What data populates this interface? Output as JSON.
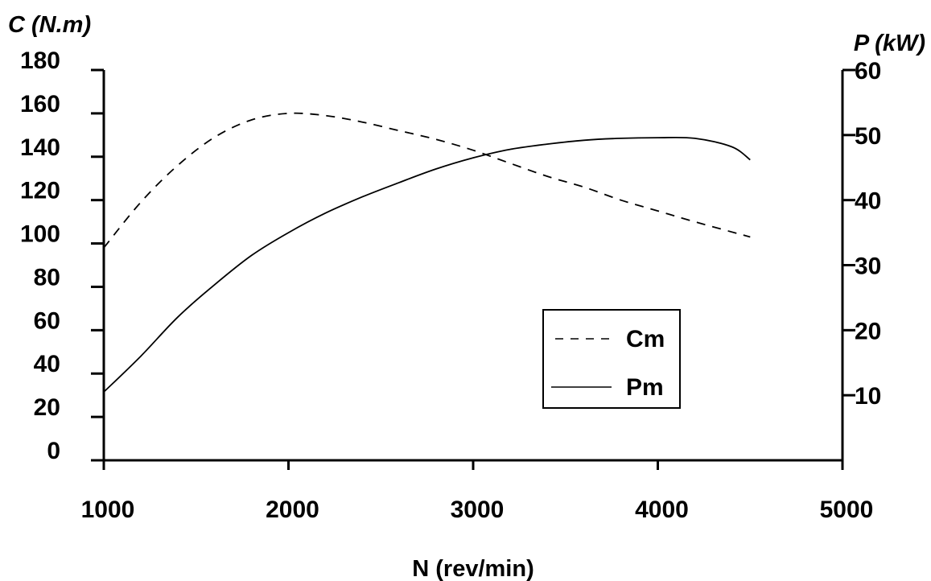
{
  "chart_data": {
    "type": "line",
    "title": "",
    "xlabel": "N (rev/min)",
    "ylabel_left": "C (N.m)",
    "ylabel_right": "P (kW)",
    "xlim": [
      1000,
      5000
    ],
    "ylim_left": [
      0,
      180
    ],
    "ylim_right": [
      0,
      60
    ],
    "x_ticks": [
      "1000",
      "2000",
      "3000",
      "4000",
      "5000"
    ],
    "y_left_ticks": [
      "0",
      "20",
      "40",
      "60",
      "80",
      "100",
      "120",
      "140",
      "160",
      "180"
    ],
    "y_right_ticks": [
      "10",
      "20",
      "30",
      "40",
      "50",
      "60"
    ],
    "grid": false,
    "legend_position": "center-right",
    "series": [
      {
        "name": "Cm",
        "axis": "left",
        "style": "dashed",
        "x": [
          1000,
          1200,
          1400,
          1600,
          1800,
          2000,
          2200,
          2400,
          2600,
          2800,
          3000,
          3200,
          3400,
          3600,
          3800,
          4000,
          4200,
          4500
        ],
        "y": [
          98,
          119,
          136,
          149,
          157,
          160,
          159,
          156,
          152,
          148,
          143,
          137,
          131,
          126,
          120,
          115,
          110,
          103
        ]
      },
      {
        "name": "Pm",
        "axis": "right",
        "style": "solid",
        "x": [
          1000,
          1200,
          1400,
          1600,
          1800,
          2000,
          2200,
          2400,
          2600,
          2800,
          3000,
          3200,
          3400,
          3600,
          3800,
          4000,
          4200,
          4400,
          4500
        ],
        "y": [
          10.5,
          16,
          22,
          27,
          31.5,
          35,
          38,
          40.5,
          42.7,
          44.8,
          46.5,
          47.8,
          48.6,
          49.2,
          49.5,
          49.6,
          49.5,
          48.2,
          46.2
        ]
      }
    ]
  }
}
